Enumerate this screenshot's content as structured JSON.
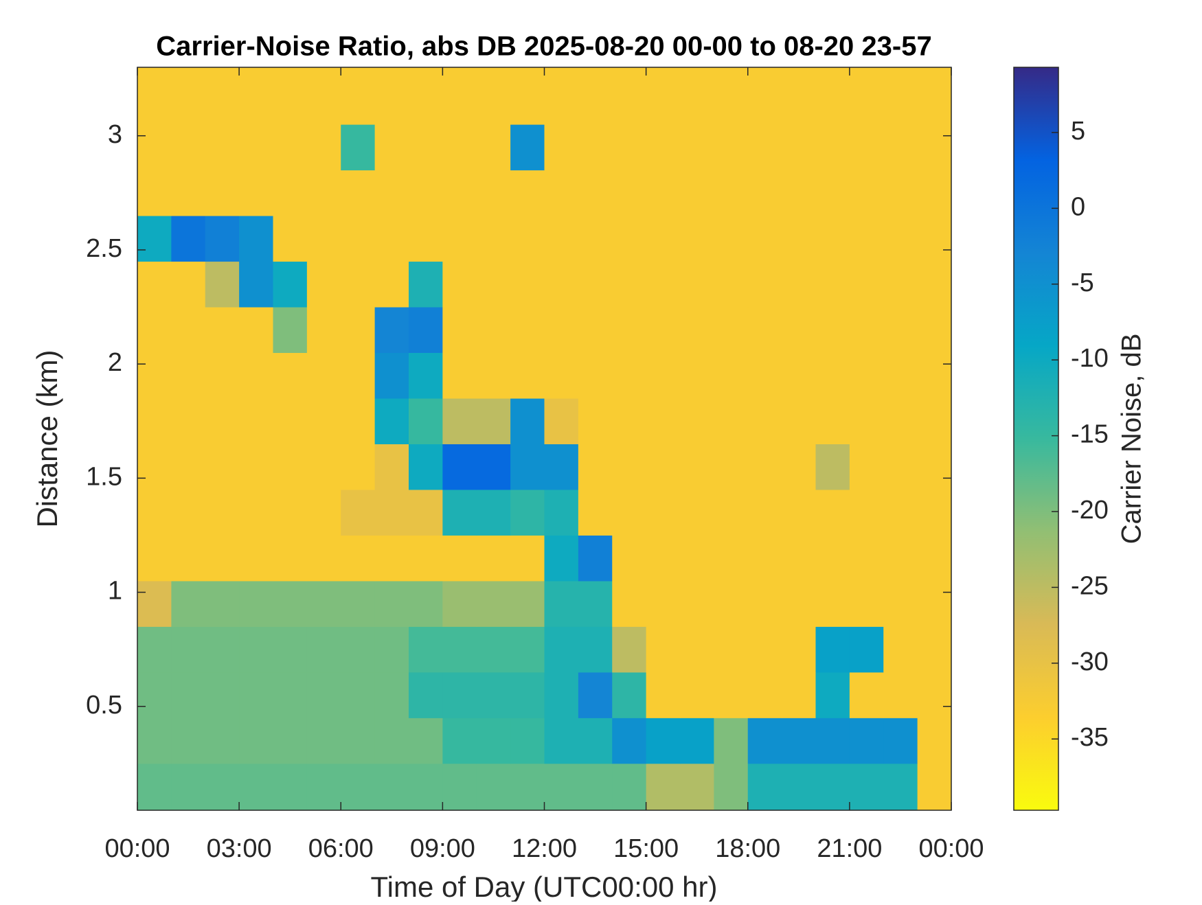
{
  "chart_data": {
    "type": "heatmap",
    "title": "Carrier-Noise Ratio, abs DB 2025-08-20 00-00 to 08-20 23-57",
    "xlabel": "Time of Day (UTC00:00 hr)",
    "ylabel": "Distance (km)",
    "colorbar_label": "Carrier Noise, dB",
    "x_edges": [
      0,
      1,
      2,
      3,
      4,
      5,
      6,
      7,
      8,
      9,
      10,
      11,
      12,
      13,
      14,
      15,
      16,
      17,
      18,
      19,
      20,
      21,
      22,
      23,
      24
    ],
    "y_edges": [
      0.045,
      0.25,
      0.45,
      0.65,
      0.85,
      1.05,
      1.25,
      1.45,
      1.65,
      1.85,
      2.05,
      2.25,
      2.45,
      2.65,
      2.85,
      3.05,
      3.3
    ],
    "z": [
      [
        -18,
        -18,
        -18,
        -18,
        -18,
        -18,
        -18,
        -18,
        -18,
        -18,
        -18,
        -18,
        -18,
        -18,
        -18,
        -24,
        -24,
        -20,
        -12,
        -12,
        -12,
        -12,
        -12,
        -33
      ],
      [
        -19,
        -19,
        -19,
        -19,
        -19,
        -19,
        -19,
        -19,
        -19,
        -15,
        -15,
        -15,
        -12,
        -12,
        -5,
        -8,
        -8,
        -20,
        -5,
        -5,
        -5,
        -5,
        -5,
        -33
      ],
      [
        -19,
        -19,
        -19,
        -19,
        -19,
        -19,
        -19,
        -19,
        -14,
        -14,
        -14,
        -14,
        -12,
        -3,
        -14,
        -33,
        -33,
        -33,
        -33,
        -33,
        -10,
        -33,
        -33,
        -33
      ],
      [
        -19,
        -19,
        -19,
        -19,
        -19,
        -19,
        -19,
        -19,
        -16,
        -16,
        -16,
        -16,
        -12,
        -12,
        -25,
        -33,
        -33,
        -33,
        -33,
        -33,
        -8,
        -8,
        -33,
        -33
      ],
      [
        -28,
        -20,
        -20,
        -20,
        -20,
        -20,
        -20,
        -20,
        -20,
        -22,
        -22,
        -22,
        -13,
        -13,
        -33,
        -33,
        -33,
        -33,
        -33,
        -33,
        -33,
        -33,
        -33,
        -33
      ],
      [
        -33,
        -33,
        -33,
        -33,
        -33,
        -33,
        -33,
        -33,
        -33,
        -33,
        -33,
        -33,
        -10,
        -2,
        -33,
        -33,
        -33,
        -33,
        -33,
        -33,
        -33,
        -33,
        -33,
        -33
      ],
      [
        -33,
        -33,
        -33,
        -33,
        -33,
        -33,
        -30,
        -30,
        -30,
        -12,
        -12,
        -14,
        -12,
        -33,
        -33,
        -33,
        -33,
        -33,
        -33,
        -33,
        -33,
        -33,
        -33,
        -33
      ],
      [
        -33,
        -33,
        -33,
        -33,
        -33,
        -33,
        -33,
        -30,
        -10,
        2,
        2,
        -5,
        -5,
        -33,
        -33,
        -33,
        -33,
        -33,
        -33,
        -33,
        -25,
        -33,
        -33,
        -33
      ],
      [
        -33,
        -33,
        -33,
        -33,
        -33,
        -33,
        -33,
        -10,
        -15,
        -25,
        -25,
        -5,
        -30,
        -33,
        -33,
        -33,
        -33,
        -33,
        -33,
        -33,
        -33,
        -33,
        -33,
        -33
      ],
      [
        -33,
        -33,
        -33,
        -33,
        -33,
        -33,
        -33,
        -5,
        -10,
        -33,
        -33,
        -33,
        -33,
        -33,
        -33,
        -33,
        -33,
        -33,
        -33,
        -33,
        -33,
        -33,
        -33,
        -33
      ],
      [
        -33,
        -33,
        -33,
        -33,
        -20,
        -33,
        -33,
        -3,
        -2,
        -33,
        -33,
        -33,
        -33,
        -33,
        -33,
        -33,
        -33,
        -33,
        -33,
        -33,
        -33,
        -33,
        -33,
        -33
      ],
      [
        -33,
        -33,
        -25,
        -5,
        -10,
        -33,
        -33,
        -33,
        -12,
        -33,
        -33,
        -33,
        -33,
        -33,
        -33,
        -33,
        -33,
        -33,
        -33,
        -33,
        -33,
        -33,
        -33,
        -33
      ],
      [
        -10,
        0,
        -2,
        -5,
        -33,
        -33,
        -33,
        -33,
        -33,
        -33,
        -33,
        -33,
        -33,
        -33,
        -33,
        -33,
        -33,
        -33,
        -33,
        -33,
        -33,
        -33,
        -33,
        -33
      ],
      [
        -33,
        -33,
        -33,
        -33,
        -33,
        -33,
        -33,
        -33,
        -33,
        -33,
        -33,
        -33,
        -33,
        -33,
        -33,
        -33,
        -33,
        -33,
        -33,
        -33,
        -33,
        -33,
        -33,
        -33
      ],
      [
        -33,
        -33,
        -33,
        -33,
        -33,
        -33,
        -15,
        -33,
        -33,
        -33,
        -33,
        -5,
        -33,
        -33,
        -33,
        -33,
        -33,
        -33,
        -33,
        -33,
        -33,
        -33,
        -33,
        -33
      ],
      [
        -33,
        -33,
        -33,
        -33,
        -33,
        -33,
        -33,
        -33,
        -33,
        -33,
        -33,
        -33,
        -33,
        -33,
        -33,
        -33,
        -33,
        -33,
        -33,
        -33,
        -33,
        -33,
        -33,
        -33
      ]
    ],
    "xlim": [
      0,
      24
    ],
    "xticks": [
      {
        "value": 0,
        "label": "00:00"
      },
      {
        "value": 3,
        "label": "03:00"
      },
      {
        "value": 6,
        "label": "06:00"
      },
      {
        "value": 9,
        "label": "09:00"
      },
      {
        "value": 12,
        "label": "12:00"
      },
      {
        "value": 15,
        "label": "15:00"
      },
      {
        "value": 18,
        "label": "18:00"
      },
      {
        "value": 21,
        "label": "21:00"
      },
      {
        "value": 24,
        "label": "00:00"
      }
    ],
    "ylim": [
      0.045,
      3.3
    ],
    "yticks": [
      0.5,
      1,
      1.5,
      2,
      2.5,
      3
    ],
    "clim": [
      -39.7,
      9.3
    ],
    "cticks": [
      -35,
      -30,
      -25,
      -20,
      -15,
      -10,
      -5,
      0,
      5
    ],
    "colormap": [
      "#f9fb0e",
      "#fcce2e",
      "#d9ba56",
      "#92bf73",
      "#38b99e",
      "#06a7c6",
      "#1485d4",
      "#0363e1",
      "#352a87"
    ]
  }
}
